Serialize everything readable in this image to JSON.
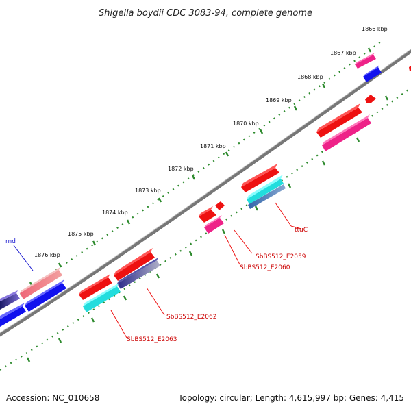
{
  "title": "Shigella boydii CDC 3083-94, complete genome",
  "footer": {
    "accession": "Accession: NC_010658",
    "summary": "Topology: circular; Length: 4,615,997 bp; Genes: 4,415"
  },
  "colors": {
    "backbone": "#808080",
    "tick_dots": "#2e8b2e",
    "tick_major": "#2e8b2e",
    "gene_red": "#ee1111",
    "gene_pink": "#ee2288",
    "gene_blue": "#1111ee",
    "gene_cyan": "#22dddd",
    "gene_label": "#cc0000",
    "rnd_label": "#1a1ad0"
  },
  "ticks": [
    {
      "label": "1866 kbp"
    },
    {
      "label": "1867 kbp"
    },
    {
      "label": "1868 kbp"
    },
    {
      "label": "1869 kbp"
    },
    {
      "label": "1870 kbp"
    },
    {
      "label": "1871 kbp"
    },
    {
      "label": "1872 kbp"
    },
    {
      "label": "1873 kbp"
    },
    {
      "label": "1874 kbp"
    },
    {
      "label": "1875 kbp"
    },
    {
      "label": "1876 kbp"
    }
  ],
  "gene_labels": [
    {
      "name": "ttuC"
    },
    {
      "name": "SbBS512_E2059"
    },
    {
      "name": "SbBS512_E2060"
    },
    {
      "name": "SbBS512_E2062"
    },
    {
      "name": "SbBS512_E2063"
    },
    {
      "name": "rnd"
    }
  ]
}
